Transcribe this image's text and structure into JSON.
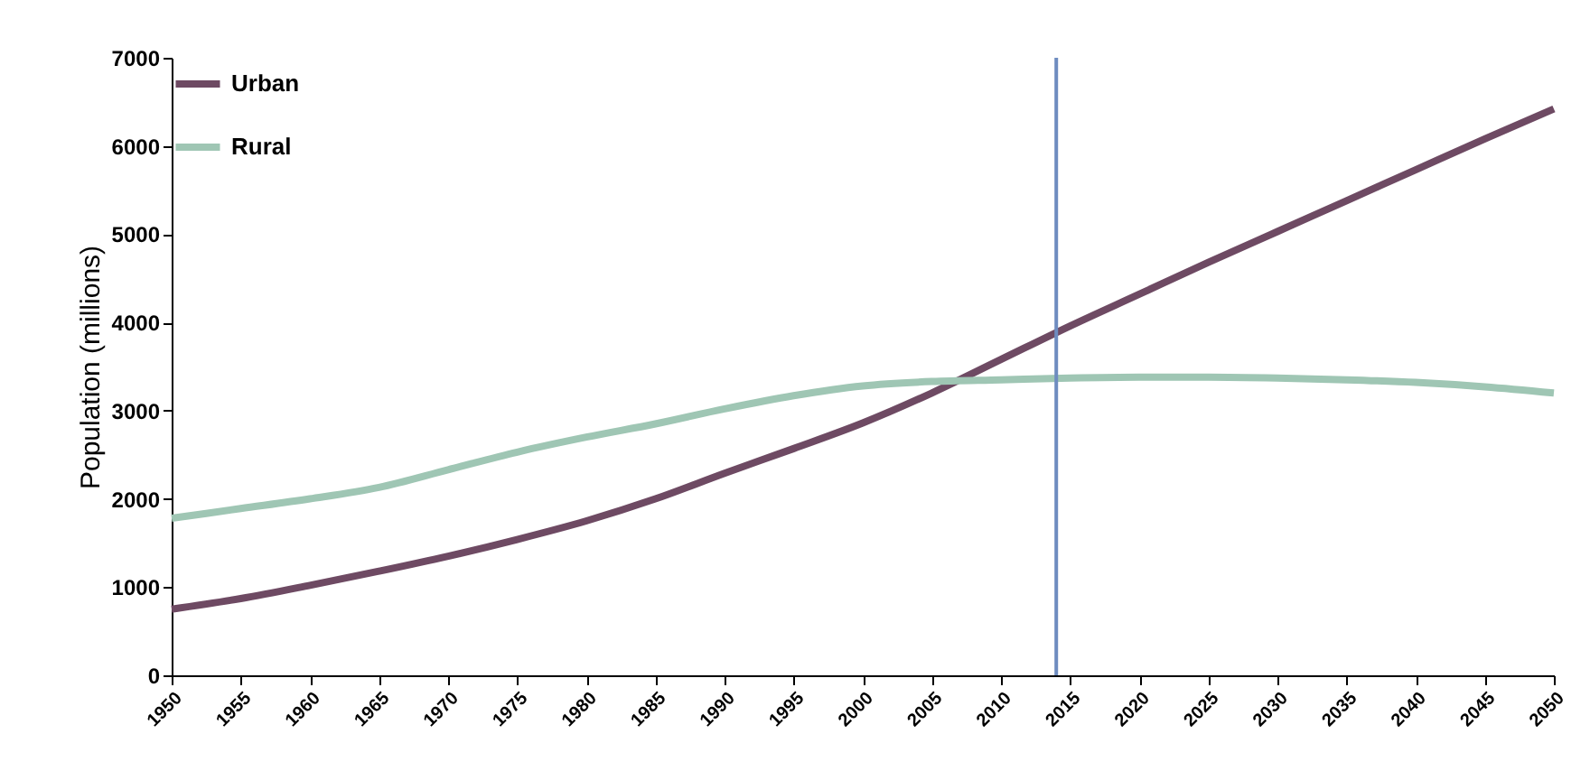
{
  "chart_data": {
    "type": "line",
    "ylabel": "Population (millions)",
    "x": [
      1950,
      1955,
      1960,
      1965,
      1970,
      1975,
      1980,
      1985,
      1990,
      1995,
      2000,
      2005,
      2010,
      2015,
      2020,
      2025,
      2030,
      2035,
      2040,
      2045,
      2050
    ],
    "series": [
      {
        "name": "Urban",
        "color": "#6e4a63",
        "values": [
          750,
          870,
          1020,
          1180,
          1350,
          1540,
          1750,
          2000,
          2290,
          2570,
          2860,
          3200,
          3580,
          3960,
          4320,
          4680,
          5030,
          5380,
          5730,
          6080,
          6420
        ]
      },
      {
        "name": "Rural",
        "color": "#9fc6b4",
        "values": [
          1780,
          1890,
          2000,
          2130,
          2330,
          2530,
          2700,
          2850,
          3020,
          3170,
          3280,
          3330,
          3350,
          3370,
          3380,
          3380,
          3370,
          3350,
          3320,
          3270,
          3200
        ]
      }
    ],
    "xlim": [
      1950,
      2050
    ],
    "xticks": [
      1950,
      1955,
      1960,
      1965,
      1970,
      1975,
      1980,
      1985,
      1990,
      1995,
      2000,
      2005,
      2010,
      2015,
      2020,
      2025,
      2030,
      2035,
      2040,
      2045,
      2050
    ],
    "ylim": [
      0,
      7000
    ],
    "yticks": [
      0,
      1000,
      2000,
      3000,
      4000,
      5000,
      6000,
      7000
    ],
    "ref_lines": [
      {
        "axis": "x",
        "value": 2014,
        "color": "#6e8cc0"
      }
    ],
    "grid": false,
    "legend": "top left",
    "marker": "none",
    "line_style": "solid"
  }
}
